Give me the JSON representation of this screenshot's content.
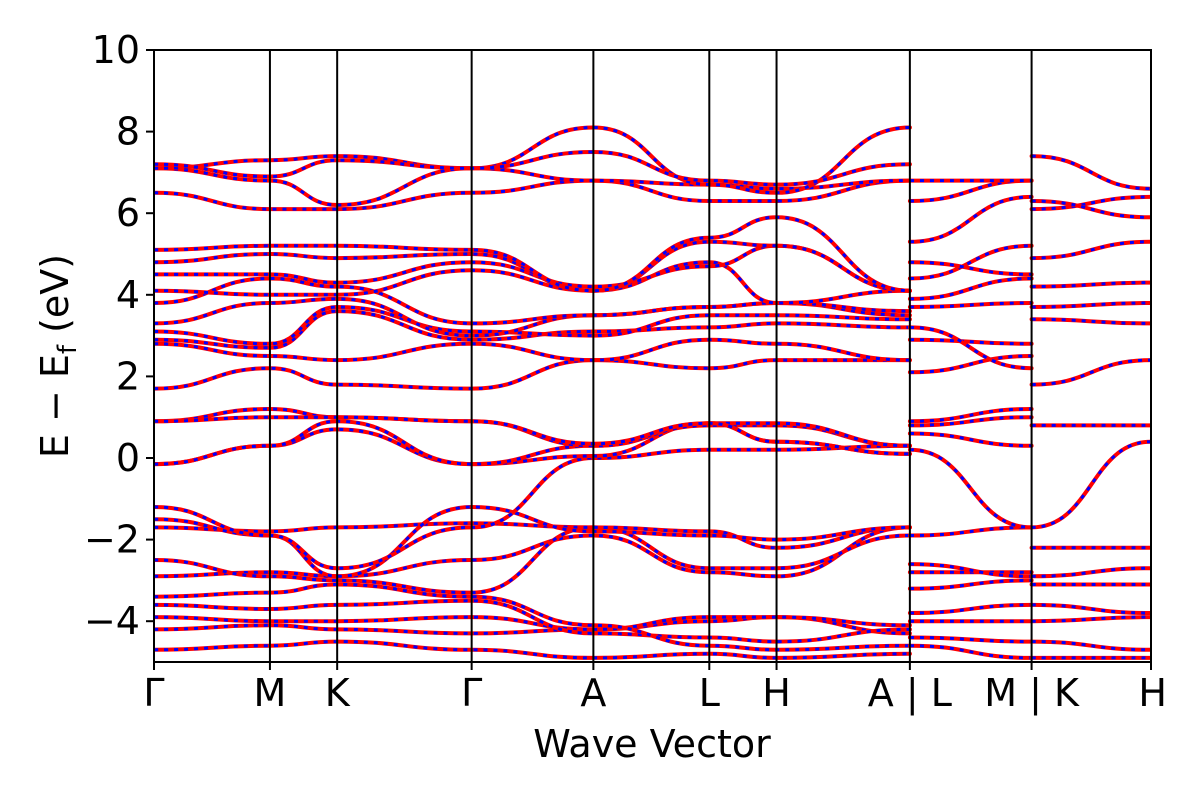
{
  "chart_data": {
    "type": "line",
    "xlabel": "Wave Vector",
    "ylabel_main": "E − E",
    "ylabel_sub": "f",
    "ylabel_unit": "(eV)",
    "ylim": [
      -5,
      10
    ],
    "yticks": [
      "−4",
      "−2",
      "0",
      "2",
      "4",
      "6",
      "8",
      "10"
    ],
    "ytick_values": [
      -4,
      -2,
      0,
      2,
      4,
      6,
      8,
      10
    ],
    "xlim": [
      0,
      8.6
    ],
    "kpoints": [
      {
        "label": "Γ",
        "x": 0.0
      },
      {
        "label": "M",
        "x": 1.0
      },
      {
        "label": "K",
        "x": 1.58
      },
      {
        "label": "Γ",
        "x": 2.74
      },
      {
        "label": "A",
        "x": 3.79
      },
      {
        "label": "L",
        "x": 4.79
      },
      {
        "label": "H",
        "x": 5.37
      },
      {
        "label": "A | L",
        "x": 6.52
      },
      {
        "label": "M | K",
        "x": 7.57
      },
      {
        "label": "H",
        "x": 8.6
      }
    ],
    "series_colors": {
      "solid": "#ff0000",
      "dashed": "#0000ff"
    },
    "bands": [
      {
        "x": [
          0,
          1.0,
          1.58,
          2.74,
          3.79,
          4.79,
          5.37,
          6.52
        ],
        "y": [
          -4.7,
          -4.6,
          -4.5,
          -4.7,
          -4.9,
          -4.8,
          -4.9,
          -4.8
        ]
      },
      {
        "x": [
          0,
          1.0,
          1.58,
          2.74,
          3.79,
          4.79,
          5.37,
          6.52
        ],
        "y": [
          -4.2,
          -4.1,
          -4.2,
          -4.3,
          -4.2,
          -4.0,
          -3.9,
          -4.3
        ]
      },
      {
        "x": [
          0,
          1.0,
          1.58,
          2.74,
          3.79,
          4.79,
          5.37,
          6.52
        ],
        "y": [
          -3.9,
          -4.0,
          -4.0,
          -3.9,
          -4.2,
          -3.9,
          -3.9,
          -4.1
        ]
      },
      {
        "x": [
          0,
          1.0,
          1.58,
          2.74,
          3.79,
          4.79,
          5.37,
          6.52
        ],
        "y": [
          -3.6,
          -3.7,
          -3.6,
          -3.5,
          -4.3,
          -4.4,
          -4.5,
          -4.2
        ]
      },
      {
        "x": [
          0,
          1.0,
          1.58,
          2.74,
          3.79,
          4.79,
          5.37,
          6.52
        ],
        "y": [
          -3.4,
          -3.3,
          -3.1,
          -3.4,
          -4.1,
          -4.6,
          -4.7,
          -4.6
        ]
      },
      {
        "x": [
          0,
          1.0,
          1.58,
          2.74,
          3.79,
          4.79,
          5.37,
          6.52
        ],
        "y": [
          -2.9,
          -2.8,
          -2.9,
          -2.5,
          -1.9,
          -2.8,
          -2.9,
          -1.7
        ]
      },
      {
        "x": [
          0,
          1.0,
          1.58,
          2.74,
          3.79,
          4.79,
          5.37,
          6.52
        ],
        "y": [
          -2.5,
          -2.9,
          -3.0,
          -3.3,
          -1.7,
          -2.7,
          -2.7,
          -1.9
        ]
      },
      {
        "x": [
          0,
          1.0,
          1.58,
          2.74,
          3.79,
          4.79,
          5.37,
          6.52
        ],
        "y": [
          -1.7,
          -1.8,
          -1.7,
          -1.6,
          -1.7,
          -1.8,
          -2.2,
          -1.7
        ]
      },
      {
        "x": [
          0,
          1.0,
          1.58,
          2.74,
          3.79,
          4.79,
          5.37,
          6.52
        ],
        "y": [
          -1.5,
          -1.9,
          -2.9,
          -1.2,
          -1.8,
          -1.9,
          -2.0,
          -1.7
        ]
      },
      {
        "x": [
          0,
          1.0,
          1.58,
          2.74,
          3.79,
          4.79,
          5.37,
          6.52
        ],
        "y": [
          -1.2,
          -1.9,
          -2.7,
          -1.7,
          0.0,
          0.2,
          0.2,
          0.3
        ]
      },
      {
        "x": [
          0,
          1.0,
          1.58,
          2.74,
          3.79,
          4.79,
          5.37,
          6.52
        ],
        "y": [
          -0.15,
          0.3,
          0.7,
          -0.15,
          0.05,
          0.85,
          0.4,
          0.1
        ]
      },
      {
        "x": [
          0,
          1.0,
          1.58,
          2.74,
          3.79,
          4.79,
          5.37,
          6.52
        ],
        "y": [
          -0.15,
          0.3,
          0.9,
          -0.15,
          0.3,
          0.8,
          0.8,
          0.3
        ]
      },
      {
        "x": [
          0,
          1.0,
          1.58,
          2.74,
          3.79,
          4.79,
          5.37,
          6.52
        ],
        "y": [
          0.9,
          1.2,
          1.0,
          0.9,
          0.3,
          0.85,
          0.85,
          0.3
        ]
      },
      {
        "x": [
          0,
          1.0,
          1.58,
          2.74,
          3.79,
          4.79,
          5.37,
          6.52
        ],
        "y": [
          0.9,
          1.0,
          1.0,
          0.9,
          0.35,
          0.85,
          0.4,
          0.1
        ]
      },
      {
        "x": [
          0,
          1.0,
          1.58,
          2.74,
          3.79,
          4.79,
          5.37,
          6.52
        ],
        "y": [
          1.7,
          2.2,
          1.8,
          1.7,
          2.4,
          2.2,
          2.4,
          2.4
        ]
      },
      {
        "x": [
          0,
          1.0,
          1.58,
          2.74,
          3.79,
          4.79,
          5.37,
          6.52
        ],
        "y": [
          2.8,
          2.5,
          2.4,
          2.8,
          2.4,
          2.9,
          2.8,
          2.4
        ]
      },
      {
        "x": [
          0,
          1.0,
          1.58,
          2.74,
          3.79,
          4.79,
          5.37,
          6.52
        ],
        "y": [
          2.9,
          2.7,
          3.6,
          2.9,
          3.1,
          3.2,
          3.3,
          3.2
        ]
      },
      {
        "x": [
          0,
          1.0,
          1.58,
          2.74,
          3.79,
          4.79,
          5.37,
          6.52
        ],
        "y": [
          3.1,
          2.8,
          3.7,
          3.1,
          3.0,
          3.5,
          3.5,
          3.4
        ]
      },
      {
        "x": [
          0,
          1.0,
          1.58,
          2.74,
          3.79,
          4.79,
          5.37,
          6.52
        ],
        "y": [
          3.3,
          3.8,
          3.9,
          3.0,
          3.5,
          3.7,
          3.8,
          3.5
        ]
      },
      {
        "x": [
          0,
          1.0,
          1.58,
          2.74,
          3.79,
          4.79,
          5.37,
          6.52
        ],
        "y": [
          3.8,
          4.4,
          4.2,
          3.3,
          3.5,
          3.7,
          3.8,
          3.6
        ]
      },
      {
        "x": [
          0,
          1.0,
          1.58,
          2.74,
          3.79,
          4.79,
          5.37,
          6.52
        ],
        "y": [
          4.1,
          4.0,
          4.0,
          4.6,
          4.1,
          4.8,
          3.8,
          4.1
        ]
      },
      {
        "x": [
          0,
          1.0,
          1.58,
          2.74,
          3.79,
          4.79,
          5.37,
          6.52
        ],
        "y": [
          4.5,
          4.5,
          4.3,
          4.8,
          4.2,
          4.7,
          5.2,
          4.1
        ]
      },
      {
        "x": [
          0,
          1.0,
          1.58,
          2.74,
          3.79,
          4.79,
          5.37,
          6.52
        ],
        "y": [
          4.8,
          5.0,
          4.9,
          5.0,
          4.1,
          5.3,
          5.2,
          4.1
        ]
      },
      {
        "x": [
          0,
          1.0,
          1.58,
          2.74,
          3.79,
          4.79,
          5.37,
          6.52
        ],
        "y": [
          5.1,
          5.2,
          5.2,
          5.1,
          4.1,
          5.4,
          5.9,
          4.1
        ]
      },
      {
        "x": [
          0,
          1.0,
          1.58,
          2.74,
          3.79,
          4.79,
          5.37,
          6.52
        ],
        "y": [
          6.5,
          6.1,
          6.1,
          6.5,
          6.8,
          6.3,
          6.3,
          6.8
        ]
      },
      {
        "x": [
          0,
          1.0,
          1.58,
          2.74,
          3.79,
          4.79,
          5.37,
          6.52
        ],
        "y": [
          7.1,
          6.8,
          6.2,
          7.1,
          6.8,
          6.7,
          6.6,
          6.8
        ]
      },
      {
        "x": [
          0,
          1.0,
          1.58,
          2.74,
          3.79,
          4.79,
          5.37,
          6.52
        ],
        "y": [
          7.1,
          7.3,
          7.4,
          7.1,
          8.1,
          6.7,
          6.5,
          8.1
        ]
      },
      {
        "x": [
          0,
          1.0,
          1.58,
          2.74,
          3.79,
          4.79,
          5.37,
          6.52
        ],
        "y": [
          7.2,
          6.9,
          7.3,
          7.1,
          7.5,
          6.8,
          6.7,
          7.2
        ]
      },
      {
        "x": [
          6.52,
          7.57
        ],
        "y": [
          -4.6,
          -4.9
        ]
      },
      {
        "x": [
          6.52,
          7.57
        ],
        "y": [
          -4.4,
          -4.5
        ]
      },
      {
        "x": [
          6.52,
          7.57
        ],
        "y": [
          -4.0,
          -4.0
        ]
      },
      {
        "x": [
          6.52,
          7.57
        ],
        "y": [
          -3.8,
          -3.6
        ]
      },
      {
        "x": [
          6.52,
          7.57
        ],
        "y": [
          -3.2,
          -3.0
        ]
      },
      {
        "x": [
          6.52,
          7.57
        ],
        "y": [
          -2.8,
          -2.8
        ]
      },
      {
        "x": [
          6.52,
          7.57
        ],
        "y": [
          -2.6,
          -2.9
        ]
      },
      {
        "x": [
          6.52,
          7.57
        ],
        "y": [
          -1.9,
          -1.7
        ]
      },
      {
        "x": [
          6.52,
          7.57
        ],
        "y": [
          0.2,
          -1.7
        ]
      },
      {
        "x": [
          6.52,
          7.57
        ],
        "y": [
          0.6,
          0.3
        ]
      },
      {
        "x": [
          6.52,
          7.57
        ],
        "y": [
          0.8,
          1.0
        ]
      },
      {
        "x": [
          6.52,
          7.57
        ],
        "y": [
          0.9,
          1.2
        ]
      },
      {
        "x": [
          6.52,
          7.57
        ],
        "y": [
          2.1,
          2.5
        ]
      },
      {
        "x": [
          6.52,
          7.57
        ],
        "y": [
          2.9,
          2.8
        ]
      },
      {
        "x": [
          6.52,
          7.57
        ],
        "y": [
          3.2,
          2.2
        ]
      },
      {
        "x": [
          6.52,
          7.57
        ],
        "y": [
          3.7,
          3.8
        ]
      },
      {
        "x": [
          6.52,
          7.57
        ],
        "y": [
          3.9,
          4.4
        ]
      },
      {
        "x": [
          6.52,
          7.57
        ],
        "y": [
          4.4,
          5.2
        ]
      },
      {
        "x": [
          6.52,
          7.57
        ],
        "y": [
          4.8,
          4.5
        ]
      },
      {
        "x": [
          6.52,
          7.57
        ],
        "y": [
          5.3,
          6.4
        ]
      },
      {
        "x": [
          6.52,
          7.57
        ],
        "y": [
          6.3,
          6.8
        ]
      },
      {
        "x": [
          6.52,
          7.57
        ],
        "y": [
          6.8,
          6.8
        ]
      },
      {
        "x": [
          7.57,
          8.6
        ],
        "y": [
          -4.9,
          -4.9
        ]
      },
      {
        "x": [
          7.57,
          8.6
        ],
        "y": [
          -4.5,
          -4.7
        ]
      },
      {
        "x": [
          7.57,
          8.6
        ],
        "y": [
          -4.0,
          -3.9
        ]
      },
      {
        "x": [
          7.57,
          8.6
        ],
        "y": [
          -3.6,
          -3.8
        ]
      },
      {
        "x": [
          7.57,
          8.6
        ],
        "y": [
          -3.1,
          -3.1
        ]
      },
      {
        "x": [
          7.57,
          8.6
        ],
        "y": [
          -2.9,
          -2.7
        ]
      },
      {
        "x": [
          7.57,
          8.6
        ],
        "y": [
          -2.2,
          -2.2
        ]
      },
      {
        "x": [
          7.57,
          8.6
        ],
        "y": [
          -1.7,
          0.4
        ]
      },
      {
        "x": [
          7.57,
          8.6
        ],
        "y": [
          0.8,
          0.8
        ]
      },
      {
        "x": [
          7.57,
          8.6
        ],
        "y": [
          1.8,
          2.4
        ]
      },
      {
        "x": [
          7.57,
          8.6
        ],
        "y": [
          3.4,
          3.3
        ]
      },
      {
        "x": [
          7.57,
          8.6
        ],
        "y": [
          3.7,
          3.8
        ]
      },
      {
        "x": [
          7.57,
          8.6
        ],
        "y": [
          4.2,
          4.3
        ]
      },
      {
        "x": [
          7.57,
          8.6
        ],
        "y": [
          4.9,
          5.3
        ]
      },
      {
        "x": [
          7.57,
          8.6
        ],
        "y": [
          6.1,
          6.4
        ]
      },
      {
        "x": [
          7.57,
          8.6
        ],
        "y": [
          6.3,
          5.9
        ]
      },
      {
        "x": [
          7.57,
          8.6
        ],
        "y": [
          7.4,
          6.6
        ]
      }
    ]
  }
}
